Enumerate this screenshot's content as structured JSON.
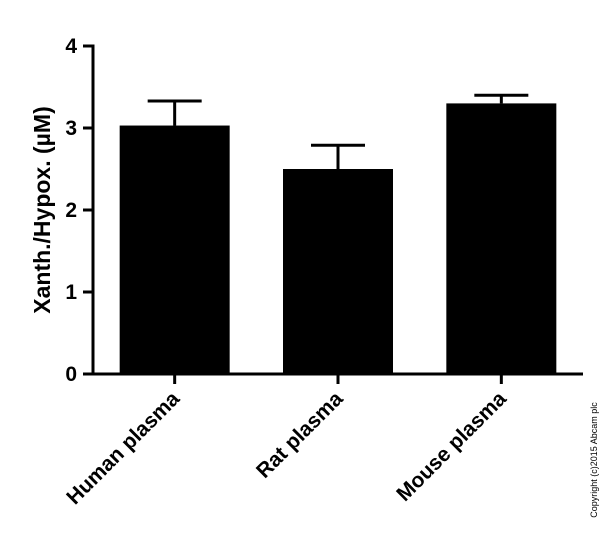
{
  "chart_data": {
    "type": "bar",
    "categories": [
      "Human plasma",
      "Rat plasma",
      "Mouse plasma"
    ],
    "values": [
      3.03,
      2.5,
      3.3
    ],
    "errors": [
      0.3,
      0.29,
      0.1
    ],
    "title": "",
    "xlabel": "",
    "ylabel": "Xanth./Hypox. (µM)",
    "ylim": [
      0,
      4
    ],
    "yticks": [
      "0",
      "1",
      "2",
      "3",
      "4"
    ],
    "grid": false,
    "legend": "none",
    "bar_color": "#000000"
  },
  "copyright": "Copyright (c)2015 Abcam plc"
}
